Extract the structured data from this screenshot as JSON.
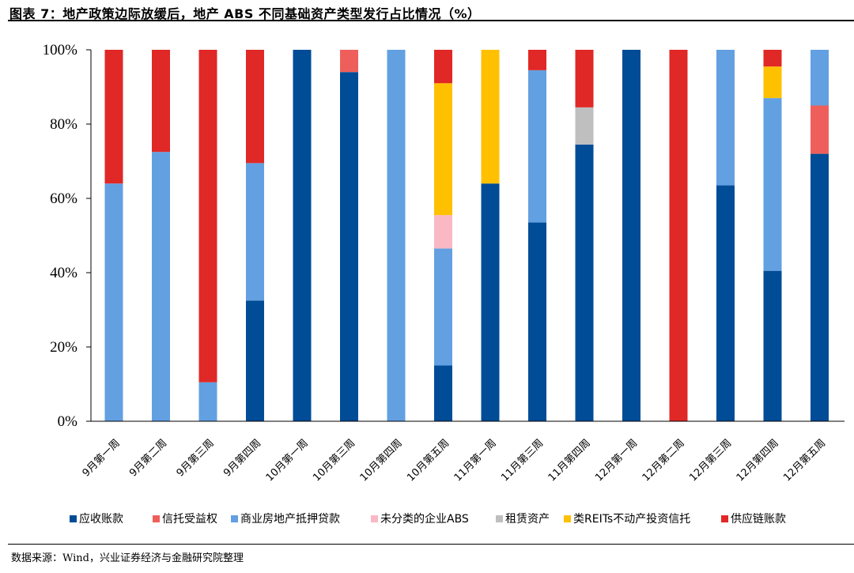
{
  "title": "图表 7：地产政策边际放缓后，地产 ABS 不同基础资产类型发行占比情况（%）",
  "source": "数据来源：Wind，兴业证券经济与金融研究院整理",
  "chart_data": {
    "type": "bar",
    "stacked": true,
    "categories": [
      "9月第一周",
      "9月第二周",
      "9月第三周",
      "9月第四周",
      "10月第一周",
      "10月第三周",
      "10月第四周",
      "10月第五周",
      "11月第一周",
      "11月第三周",
      "11月第四周",
      "12月第一周",
      "12月第二周",
      "12月第三周",
      "12月第四周",
      "12月第五周"
    ],
    "ylim": [
      0,
      100
    ],
    "yticks": [
      "0%",
      "20%",
      "40%",
      "60%",
      "80%",
      "100%"
    ],
    "legend_position": "bottom",
    "grid": false,
    "series": [
      {
        "name": "应收账款",
        "color": "#004C97",
        "values": [
          0,
          0,
          0,
          32.5,
          100,
          94,
          0,
          15,
          64,
          53.5,
          74.5,
          100,
          0,
          63.5,
          40.5,
          72
        ]
      },
      {
        "name": "信托受益权",
        "color": "#EE5F5B",
        "values": [
          0,
          0,
          0,
          0,
          0,
          6,
          0,
          0,
          0,
          0,
          0,
          0,
          0,
          0,
          0,
          13
        ]
      },
      {
        "name": "商业房地产抵押贷款",
        "color": "#62A0E2",
        "values": [
          64,
          72.5,
          10.5,
          37,
          0,
          0,
          100,
          31.5,
          0,
          41,
          0,
          0,
          0,
          36.5,
          46.5,
          15
        ]
      },
      {
        "name": "未分类的企业ABS",
        "color": "#F9B8C4",
        "values": [
          0,
          0,
          0,
          0,
          0,
          0,
          0,
          9,
          0,
          0,
          0,
          0,
          0,
          0,
          0,
          0
        ]
      },
      {
        "name": "租赁资产",
        "color": "#BFBFBF",
        "values": [
          0,
          0,
          0,
          0,
          0,
          0,
          0,
          0,
          0,
          0,
          10,
          0,
          0,
          0,
          0,
          0
        ]
      },
      {
        "name": "类REITs不动产投资信托",
        "color": "#FFC000",
        "values": [
          0,
          0,
          0,
          0,
          0,
          0,
          0,
          35.5,
          36,
          0,
          0,
          0,
          0,
          0,
          8.5,
          0
        ]
      },
      {
        "name": "供应链账款",
        "color": "#E02826",
        "values": [
          36,
          27.5,
          89.5,
          30.5,
          0,
          0,
          0,
          9,
          0,
          5.5,
          15.5,
          0,
          100,
          0,
          4.5,
          0
        ]
      }
    ]
  }
}
